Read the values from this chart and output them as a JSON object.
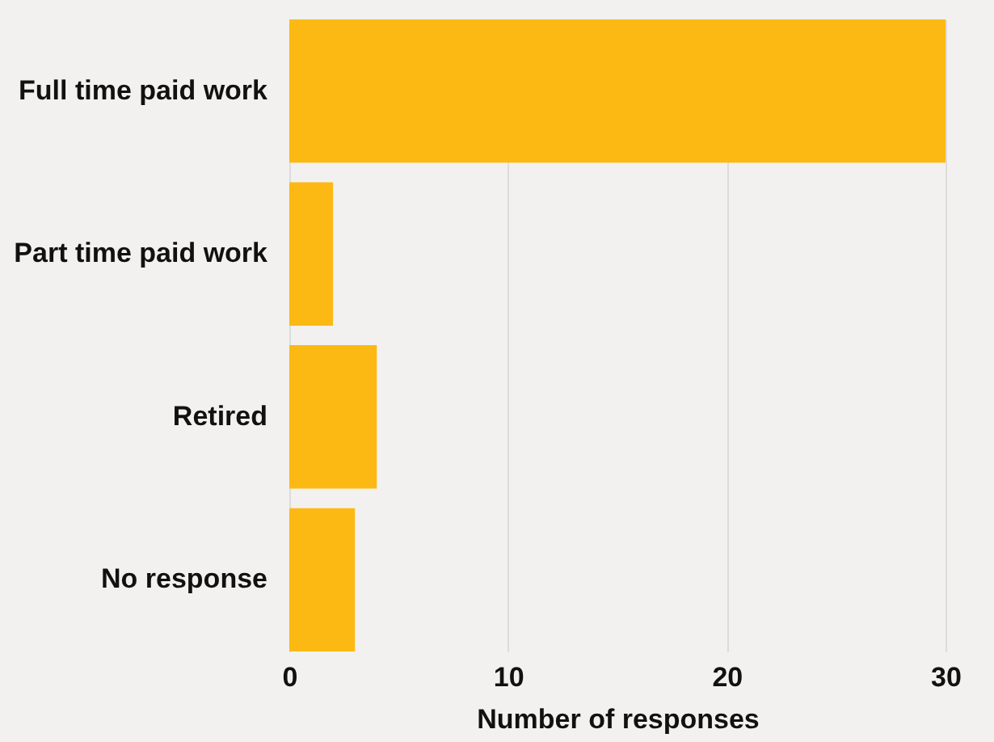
{
  "chart_data": {
    "type": "bar",
    "orientation": "horizontal",
    "categories": [
      "Full time paid work",
      "Part time paid work",
      "Retired",
      "No response"
    ],
    "values": [
      30,
      2,
      4,
      3
    ],
    "color": "#fdb913",
    "xlabel": "Number of responses",
    "xlim": [
      0,
      30
    ],
    "xticks": [
      0,
      10,
      20,
      30
    ],
    "grid": "x"
  }
}
